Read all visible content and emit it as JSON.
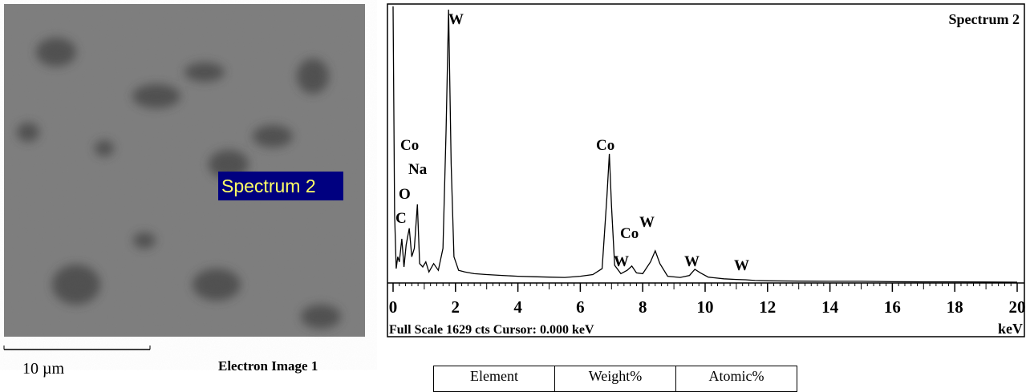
{
  "chart_data": {
    "type": "line",
    "title": "Spectrum 2",
    "xlabel": "keV",
    "footer": "Full Scale 1629 cts  Cursor: 0.000 keV",
    "x": [
      0,
      0.05,
      0.1,
      0.15,
      0.2,
      0.28,
      0.35,
      0.42,
      0.52,
      0.6,
      0.68,
      0.78,
      0.85,
      0.95,
      1.05,
      1.15,
      1.3,
      1.45,
      1.6,
      1.7,
      1.78,
      1.86,
      1.95,
      2.1,
      2.3,
      2.6,
      3,
      3.5,
      4,
      4.5,
      5,
      5.5,
      6,
      6.4,
      6.7,
      6.85,
      6.93,
      7.0,
      7.1,
      7.3,
      7.5,
      7.65,
      7.8,
      8.0,
      8.25,
      8.4,
      8.55,
      8.8,
      9.2,
      9.5,
      9.67,
      9.85,
      10.1,
      10.6,
      11.0,
      11.3,
      11.6,
      12,
      13,
      14,
      15,
      16,
      17,
      18,
      19,
      20
    ],
    "values": [
      1629,
      400,
      80,
      150,
      120,
      256,
      90,
      220,
      318,
      150,
      200,
      460,
      110,
      90,
      120,
      60,
      110,
      70,
      200,
      900,
      1610,
      700,
      150,
      70,
      60,
      50,
      45,
      40,
      35,
      32,
      30,
      28,
      35,
      45,
      80,
      500,
      758,
      450,
      100,
      50,
      70,
      95,
      55,
      50,
      120,
      185,
      110,
      35,
      28,
      40,
      76,
      55,
      30,
      20,
      16,
      14,
      10,
      8,
      6,
      5,
      5,
      3,
      2,
      2,
      1,
      0
    ],
    "color": "#000000",
    "xlim": [
      0,
      20
    ],
    "xticks": [
      0,
      2,
      4,
      6,
      8,
      10,
      12,
      14,
      16,
      18,
      20
    ],
    "ylim": [
      0,
      1629
    ],
    "annotations": [
      "W",
      "Co",
      "Na",
      "O",
      "C",
      "Co",
      "Co",
      "W",
      "W",
      "W",
      "W"
    ]
  },
  "electron_image": {
    "spectrum_label": "Spectrum 2",
    "scale_bar": "10 µm",
    "caption": "Electron Image 1"
  },
  "table": {
    "headers": [
      "Element",
      "Weight%",
      "Atomic%"
    ]
  }
}
